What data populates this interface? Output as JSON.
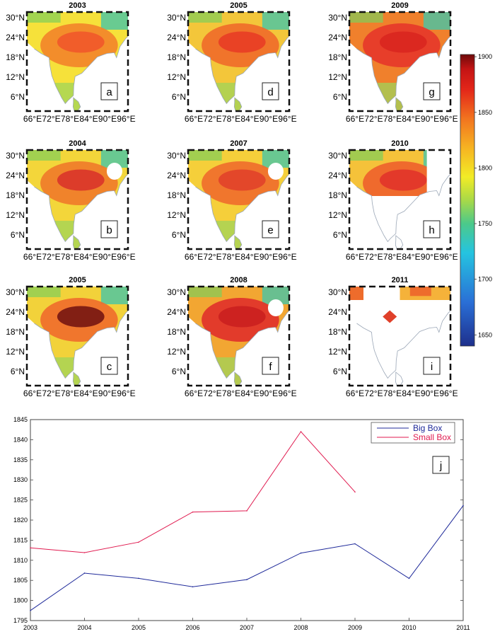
{
  "colorbar": {
    "ticks": [
      "1900",
      "1850",
      "1800",
      "1750",
      "1700",
      "1650"
    ],
    "tick_values": [
      1900,
      1850,
      1800,
      1750,
      1700,
      1650
    ],
    "range": [
      1640,
      1902
    ],
    "colors": [
      "#1e2f8c",
      "#2a6fd6",
      "#25c4e0",
      "#4cc98a",
      "#a8d948",
      "#f2ec26",
      "#f6b322",
      "#f2741f",
      "#e32619",
      "#c41414",
      "#6e0a0a"
    ]
  },
  "maps": [
    {
      "title": "2003",
      "label": "a",
      "fill": [
        "#f6e13a",
        "#f3842a",
        "#f0552a"
      ],
      "coverage": "full"
    },
    {
      "title": "2005",
      "label": "d",
      "fill": [
        "#f3c63a",
        "#ef6a2a",
        "#e83a24"
      ],
      "coverage": "full"
    },
    {
      "title": "2009",
      "label": "g",
      "fill": [
        "#f0802c",
        "#e5362a",
        "#d8241f"
      ],
      "coverage": "full"
    },
    {
      "title": "2004",
      "label": "b",
      "fill": [
        "#f3d63a",
        "#ef7a2a",
        "#d8302a"
      ],
      "coverage": "gap"
    },
    {
      "title": "2007",
      "label": "e",
      "fill": [
        "#f5cf3a",
        "#ef6b2c",
        "#e0402a"
      ],
      "coverage": "gap"
    },
    {
      "title": "2010",
      "label": "h",
      "fill": [
        "#f5c23a",
        "#ee612c",
        "#e0302a"
      ],
      "coverage": "north"
    },
    {
      "title": "2005",
      "label": "c",
      "fill": [
        "#f2d23a",
        "#ef6b2c",
        "#6e1010"
      ],
      "coverage": "full"
    },
    {
      "title": "2008",
      "label": "f",
      "fill": [
        "#f2a632",
        "#e0302a",
        "#c91f1f"
      ],
      "coverage": "gap"
    },
    {
      "title": "2011",
      "label": "i",
      "fill": [
        "#f5b23a",
        "#ee6c2c",
        "#e0402a"
      ],
      "coverage": "sparse"
    }
  ],
  "map_axes": {
    "y_ticks": [
      "30°N",
      "24°N",
      "18°N",
      "12°N",
      "6°N"
    ],
    "x_ticks": [
      "66°E",
      "72°E",
      "78°E",
      "84°E",
      "90°E",
      "96°E"
    ]
  },
  "chart_data": {
    "type": "line",
    "label": "j",
    "x": [
      "2003",
      "2004",
      "2005",
      "2006",
      "2007",
      "2008",
      "2009",
      "2010",
      "2011"
    ],
    "series": [
      {
        "name": "Big Box",
        "color": "#1f2a9a",
        "values": [
          1797.5,
          1806.8,
          1805.5,
          1803.4,
          1805.2,
          1811.8,
          1814.1,
          1805.5,
          1823.6
        ]
      },
      {
        "name": "Small Box",
        "color": "#e01a4f",
        "values": [
          1813.1,
          1811.9,
          1814.5,
          1822.0,
          1822.3,
          1842.0,
          1827.0,
          null,
          null
        ]
      }
    ],
    "ylim": [
      1795,
      1845
    ],
    "yticks": [
      "1795",
      "1800",
      "1805",
      "1810",
      "1815",
      "1820",
      "1825",
      "1830",
      "1835",
      "1840",
      "1845"
    ],
    "legend_position": "top-right",
    "grid": false
  }
}
